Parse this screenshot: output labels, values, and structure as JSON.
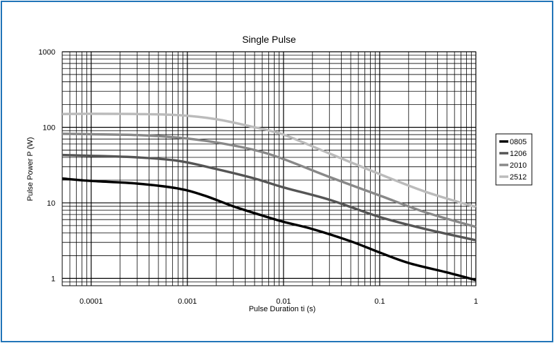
{
  "chart_data": {
    "type": "line",
    "title": "Single Pulse",
    "xlabel": "Pulse Duration ti (s)",
    "ylabel": "Pulse Power P (W)",
    "xscale": "log",
    "yscale": "log",
    "xlim": [
      5e-05,
      1
    ],
    "ylim": [
      0.8,
      1000
    ],
    "x_ticks": [
      "0.0001",
      "0.001",
      "0.01",
      "0.1",
      "1"
    ],
    "y_ticks": [
      "1",
      "10",
      "100",
      "1000"
    ],
    "grid": "on",
    "legend_position": "right",
    "series": [
      {
        "name": "0805",
        "color": "#000000",
        "points": [
          [
            5e-05,
            21
          ],
          [
            0.0001,
            19.5
          ],
          [
            0.0003,
            18
          ],
          [
            0.0008,
            15.5
          ],
          [
            0.0015,
            12.5
          ],
          [
            0.003,
            9
          ],
          [
            0.006,
            6.8
          ],
          [
            0.01,
            5.6
          ],
          [
            0.02,
            4.5
          ],
          [
            0.05,
            3.1
          ],
          [
            0.1,
            2.2
          ],
          [
            0.2,
            1.6
          ],
          [
            0.5,
            1.2
          ],
          [
            1,
            0.95
          ]
        ]
      },
      {
        "name": "1206",
        "color": "#555555",
        "points": [
          [
            5e-05,
            43
          ],
          [
            0.0001,
            42
          ],
          [
            0.0003,
            40
          ],
          [
            0.0008,
            36
          ],
          [
            0.002,
            28
          ],
          [
            0.005,
            21
          ],
          [
            0.01,
            16
          ],
          [
            0.03,
            11
          ],
          [
            0.1,
            6.5
          ],
          [
            0.3,
            4.5
          ],
          [
            1,
            3.2
          ]
        ]
      },
      {
        "name": "2010",
        "color": "#888888",
        "points": [
          [
            5e-05,
            82
          ],
          [
            0.0001,
            81
          ],
          [
            0.0003,
            79
          ],
          [
            0.0008,
            73
          ],
          [
            0.002,
            63
          ],
          [
            0.005,
            50
          ],
          [
            0.01,
            38
          ],
          [
            0.03,
            22
          ],
          [
            0.1,
            12.5
          ],
          [
            0.3,
            7.5
          ],
          [
            1,
            4.8
          ]
        ]
      },
      {
        "name": "2512",
        "color": "#bbbbbb",
        "points": [
          [
            5e-05,
            150
          ],
          [
            0.0001,
            151
          ],
          [
            0.0003,
            150
          ],
          [
            0.0008,
            145
          ],
          [
            0.002,
            128
          ],
          [
            0.005,
            100
          ],
          [
            0.01,
            80
          ],
          [
            0.03,
            45
          ],
          [
            0.1,
            24
          ],
          [
            0.3,
            14
          ],
          [
            1,
            8.8
          ]
        ]
      }
    ]
  }
}
